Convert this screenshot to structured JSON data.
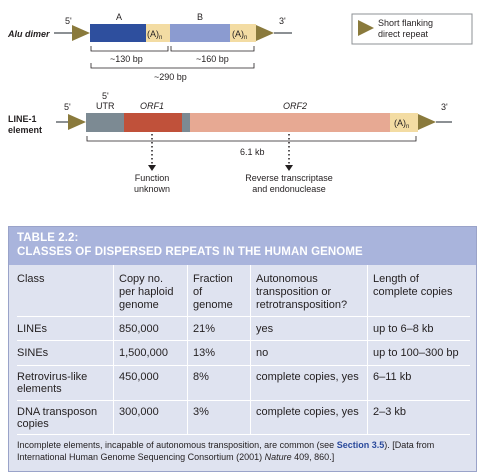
{
  "diagram": {
    "alu": {
      "label": "Alu dimer",
      "five_prime": "5'",
      "three_prime": "3'",
      "segment_a": "A",
      "segment_b": "B",
      "polyA_1": "(A)",
      "polyA_2": "(A)",
      "polyA_sub": "n",
      "size_a": "~130 bp",
      "size_b": "~160 bp",
      "size_total": "~290 bp"
    },
    "legend": {
      "text_line1": "Short flanking",
      "text_line2": "direct repeat"
    },
    "line1": {
      "label_line1": "LINE-1",
      "label_line2": "element",
      "five_prime_left": "5'",
      "five_prime_utr": "5'",
      "utr": "UTR",
      "three_prime": "3'",
      "orf1": "ORF1",
      "orf2": "ORF2",
      "polyA": "(A)",
      "polyA_sub": "n",
      "size": "6.1 kb",
      "orf1_function_line1": "Function",
      "orf1_function_line2": "unknown",
      "orf2_function_line1": "Reverse transcriptase",
      "orf2_function_line2": "and endonuclease"
    },
    "colors": {
      "alu_a": "#2e4f9e",
      "alu_b": "#8b9bd0",
      "polyA": "#f3dca3",
      "utr": "#7c8a93",
      "orf1": "#c0513a",
      "orf2": "#e7a993",
      "arrow": "#8a7a3c"
    }
  },
  "table": {
    "title_line1": "TABLE 2.2:",
    "title_line2": "CLASSES OF DISPERSED REPEATS IN THE HUMAN GENOME",
    "headers": {
      "class": "Class",
      "copy_1": "Copy no.",
      "copy_2": "per haploid",
      "copy_3": "genome",
      "frac_1": "Fraction",
      "frac_2": "of",
      "frac_3": "genome",
      "auto_1": "Autonomous",
      "auto_2": "transposition or",
      "auto_3": "retrotransposition?",
      "len_1": "Length of",
      "len_2": "complete copies"
    },
    "rows": [
      {
        "cls1": "LINEs",
        "cls2": "",
        "copy": "850,000",
        "frac": "21%",
        "auto": "yes",
        "len": "up to 6–8 kb"
      },
      {
        "cls1": "SINEs",
        "cls2": "",
        "copy": "1,500,000",
        "frac": "13%",
        "auto": "no",
        "len": "up to 100–300 bp"
      },
      {
        "cls1": "Retrovirus-like",
        "cls2": "elements",
        "copy": "450,000",
        "frac": "8%",
        "auto": "complete copies, yes",
        "len": "6–11 kb"
      },
      {
        "cls1": "DNA transposon",
        "cls2": "copies",
        "copy": "300,000",
        "frac": "3%",
        "auto": "complete copies, yes",
        "len": "2–3 kb"
      }
    ],
    "footnote": {
      "part1": "Incomplete elements, incapable of autonomous transposition, are common (see ",
      "link": "Section 3.5",
      "part2": "). [Data from",
      "line2_a": "International Human Genome Sequencing Consortium (2001) ",
      "journal": "Nature",
      "line2_b": " 409, 860.]"
    }
  }
}
